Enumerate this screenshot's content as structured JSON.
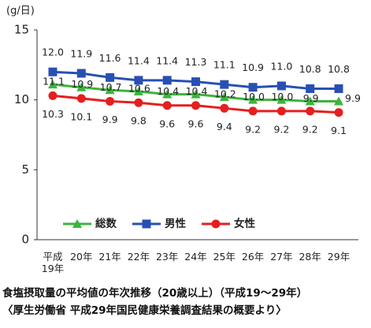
{
  "chart_data": {
    "type": "line",
    "unit_label": "(g/日)",
    "categories": [
      "平成19年",
      "20年",
      "21年",
      "22年",
      "23年",
      "24年",
      "25年",
      "26年",
      "27年",
      "28年",
      "29年"
    ],
    "series": [
      {
        "name": "総数",
        "color": "#3cb43c",
        "marker": "triangle",
        "values": [
          11.1,
          10.9,
          10.7,
          10.6,
          10.4,
          10.4,
          10.2,
          10.0,
          10.0,
          9.9,
          9.9
        ],
        "value_labels": [
          "11.1",
          "10.9",
          "10.7",
          "10.6",
          "10.4",
          "10.4",
          "10.2",
          "10.0",
          "10.0",
          "9.9",
          "9.9"
        ]
      },
      {
        "name": "男性",
        "color": "#2850b4",
        "marker": "square",
        "values": [
          12.0,
          11.9,
          11.6,
          11.4,
          11.4,
          11.3,
          11.1,
          10.9,
          11.0,
          10.8,
          10.8
        ],
        "value_labels": [
          "12.0",
          "11.9",
          "11.6",
          "11.4",
          "11.4",
          "11.3",
          "11.1",
          "10.9",
          "11.0",
          "10.8",
          "10.8"
        ]
      },
      {
        "name": "女性",
        "color": "#e61e1e",
        "marker": "circle",
        "values": [
          10.3,
          10.1,
          9.9,
          9.8,
          9.6,
          9.6,
          9.4,
          9.2,
          9.2,
          9.2,
          9.1
        ],
        "value_labels": [
          "10.3",
          "10.1",
          "9.9",
          "9.8",
          "9.6",
          "9.6",
          "9.4",
          "9.2",
          "9.2",
          "9.2",
          "9.1"
        ]
      }
    ],
    "ylim": [
      0,
      15
    ],
    "yticks": [
      0,
      5,
      10,
      15
    ],
    "caption": [
      "食塩摂取量の平均値の年次推移（20歳以上）（平成19～29年）",
      "〈厚生労働省 平成29年国民健康栄養調査結果の概要より〉"
    ]
  }
}
